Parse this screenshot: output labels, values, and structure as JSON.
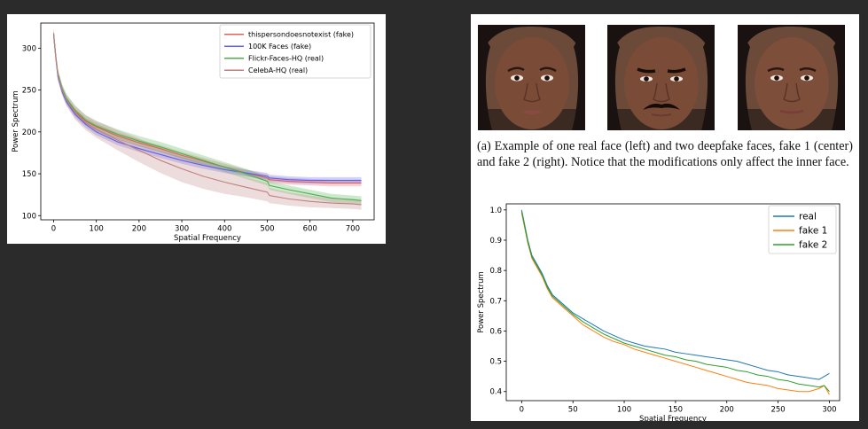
{
  "chart_data": [
    {
      "type": "line",
      "xlabel": "Spatial Frequency",
      "ylabel": "Power Spectrum",
      "xlim": [
        -30,
        750
      ],
      "ylim": [
        95,
        330
      ],
      "xticks": [
        0,
        100,
        200,
        300,
        400,
        500,
        600,
        700
      ],
      "yticks": [
        100,
        150,
        200,
        250,
        300
      ],
      "legend_position": "top-right",
      "legend": [
        "thispersondoesnotexist (fake)",
        "100K Faces (fake)",
        "Flickr-Faces-HQ (real)",
        "CelebA-HQ (real)"
      ],
      "series": [
        {
          "name": "thispersondoesnotexist (fake)",
          "color": "#e06060",
          "x": [
            0,
            5,
            10,
            20,
            30,
            50,
            75,
            100,
            150,
            200,
            250,
            300,
            350,
            400,
            450,
            500,
            505,
            550,
            600,
            650,
            700,
            720
          ],
          "y": [
            317,
            290,
            268,
            250,
            238,
            224,
            213,
            206,
            195,
            187,
            180,
            172,
            165,
            158,
            151,
            145,
            143,
            141,
            140,
            139,
            139,
            139
          ],
          "band": [
            5,
            4,
            4,
            4,
            4,
            4,
            4,
            4,
            4,
            4,
            4,
            4,
            4,
            4,
            4,
            4,
            4,
            4,
            4,
            4,
            4,
            4
          ]
        },
        {
          "name": "100K Faces (fake)",
          "color": "#6060ee",
          "x": [
            0,
            5,
            10,
            20,
            30,
            50,
            75,
            100,
            150,
            200,
            250,
            300,
            350,
            400,
            450,
            500,
            505,
            550,
            600,
            650,
            700,
            720
          ],
          "y": [
            316,
            289,
            266,
            248,
            236,
            221,
            209,
            200,
            188,
            180,
            173,
            166,
            160,
            155,
            151,
            147,
            145,
            143,
            142,
            142,
            142,
            142
          ],
          "band": [
            5,
            4,
            4,
            4,
            4,
            4,
            4,
            4,
            4,
            4,
            4,
            4,
            4,
            4,
            4,
            4,
            4,
            4,
            4,
            4,
            4,
            4
          ]
        },
        {
          "name": "Flickr-Faces-HQ (real)",
          "color": "#4caf4c",
          "x": [
            0,
            5,
            10,
            20,
            30,
            50,
            75,
            100,
            150,
            200,
            250,
            300,
            350,
            400,
            450,
            500,
            505,
            550,
            600,
            650,
            700,
            720
          ],
          "y": [
            318,
            291,
            270,
            252,
            240,
            226,
            214,
            207,
            197,
            189,
            182,
            174,
            166,
            158,
            150,
            141,
            136,
            131,
            126,
            121,
            119,
            118
          ],
          "band": [
            6,
            5,
            5,
            5,
            5,
            6,
            6,
            6,
            6,
            6,
            6,
            6,
            6,
            6,
            6,
            5,
            5,
            5,
            5,
            5,
            5,
            5
          ]
        },
        {
          "name": "CelebA-HQ (real)",
          "color": "#c08080",
          "x": [
            0,
            5,
            10,
            20,
            30,
            50,
            75,
            100,
            150,
            200,
            250,
            300,
            350,
            400,
            450,
            500,
            505,
            550,
            600,
            650,
            700,
            720
          ],
          "y": [
            318,
            290,
            268,
            250,
            238,
            223,
            211,
            203,
            190,
            178,
            166,
            156,
            147,
            140,
            134,
            128,
            124,
            120,
            117,
            115,
            114,
            113
          ],
          "band": [
            6,
            6,
            6,
            6,
            7,
            8,
            9,
            10,
            12,
            14,
            15,
            16,
            15,
            14,
            12,
            11,
            9,
            8,
            7,
            6,
            6,
            6
          ]
        }
      ]
    },
    {
      "type": "line",
      "xlabel": "Spatial Frequency",
      "ylabel": "Power Spectrum",
      "xlim": [
        -15,
        310
      ],
      "ylim": [
        0.37,
        1.02
      ],
      "xticks": [
        0,
        50,
        100,
        150,
        200,
        250,
        300
      ],
      "yticks": [
        0.4,
        0.5,
        0.6,
        0.7,
        0.8,
        0.9,
        1.0
      ],
      "yticklabels": [
        "0.4",
        "0.5",
        "0.6",
        "0.7",
        "0.8",
        "0.9",
        "1.0"
      ],
      "legend_position": "top-right",
      "legend": [
        "real",
        "fake 1",
        "fake 2"
      ],
      "series": [
        {
          "name": "real",
          "color": "#1f77b4",
          "x": [
            0,
            3,
            6,
            10,
            15,
            20,
            25,
            30,
            40,
            50,
            60,
            70,
            80,
            90,
            100,
            110,
            120,
            130,
            140,
            150,
            160,
            170,
            180,
            190,
            200,
            210,
            220,
            230,
            240,
            250,
            260,
            270,
            280,
            290,
            295,
            300
          ],
          "y": [
            1.0,
            0.95,
            0.9,
            0.85,
            0.82,
            0.79,
            0.75,
            0.72,
            0.69,
            0.66,
            0.64,
            0.62,
            0.6,
            0.585,
            0.57,
            0.56,
            0.55,
            0.545,
            0.54,
            0.53,
            0.525,
            0.52,
            0.515,
            0.51,
            0.505,
            0.5,
            0.49,
            0.48,
            0.47,
            0.465,
            0.455,
            0.45,
            0.445,
            0.44,
            0.45,
            0.46
          ]
        },
        {
          "name": "fake 1",
          "color": "#ff7f0e",
          "x": [
            0,
            3,
            6,
            10,
            15,
            20,
            25,
            30,
            40,
            50,
            60,
            70,
            80,
            90,
            100,
            110,
            120,
            130,
            140,
            150,
            160,
            170,
            180,
            190,
            200,
            210,
            220,
            230,
            240,
            250,
            260,
            270,
            280,
            290,
            295,
            300
          ],
          "y": [
            0.99,
            0.94,
            0.89,
            0.84,
            0.81,
            0.78,
            0.74,
            0.71,
            0.68,
            0.65,
            0.62,
            0.6,
            0.58,
            0.565,
            0.555,
            0.54,
            0.53,
            0.52,
            0.51,
            0.5,
            0.49,
            0.48,
            0.47,
            0.46,
            0.45,
            0.44,
            0.43,
            0.425,
            0.42,
            0.41,
            0.405,
            0.4,
            0.4,
            0.41,
            0.42,
            0.39
          ]
        },
        {
          "name": "fake 2",
          "color": "#2ca02c",
          "x": [
            0,
            3,
            6,
            10,
            15,
            20,
            25,
            30,
            40,
            50,
            60,
            70,
            80,
            90,
            100,
            110,
            120,
            130,
            140,
            150,
            160,
            170,
            180,
            190,
            200,
            210,
            220,
            230,
            240,
            250,
            260,
            270,
            280,
            290,
            295,
            300
          ],
          "y": [
            0.995,
            0.945,
            0.895,
            0.845,
            0.815,
            0.785,
            0.745,
            0.715,
            0.685,
            0.655,
            0.63,
            0.61,
            0.59,
            0.575,
            0.56,
            0.55,
            0.54,
            0.53,
            0.52,
            0.515,
            0.505,
            0.5,
            0.49,
            0.485,
            0.48,
            0.47,
            0.465,
            0.455,
            0.45,
            0.44,
            0.435,
            0.425,
            0.42,
            0.415,
            0.42,
            0.4
          ]
        }
      ]
    }
  ],
  "caption": "(a) Example of one real face (left) and two deepfake faces, fake 1 (center) and fake 2 (right). Notice that the modifications only affect the inner face.",
  "faces": [
    "face-real",
    "face-fake-1",
    "face-fake-2"
  ],
  "colors": {
    "page_background": "#2b2b2b",
    "panel_background": "#ffffff"
  }
}
